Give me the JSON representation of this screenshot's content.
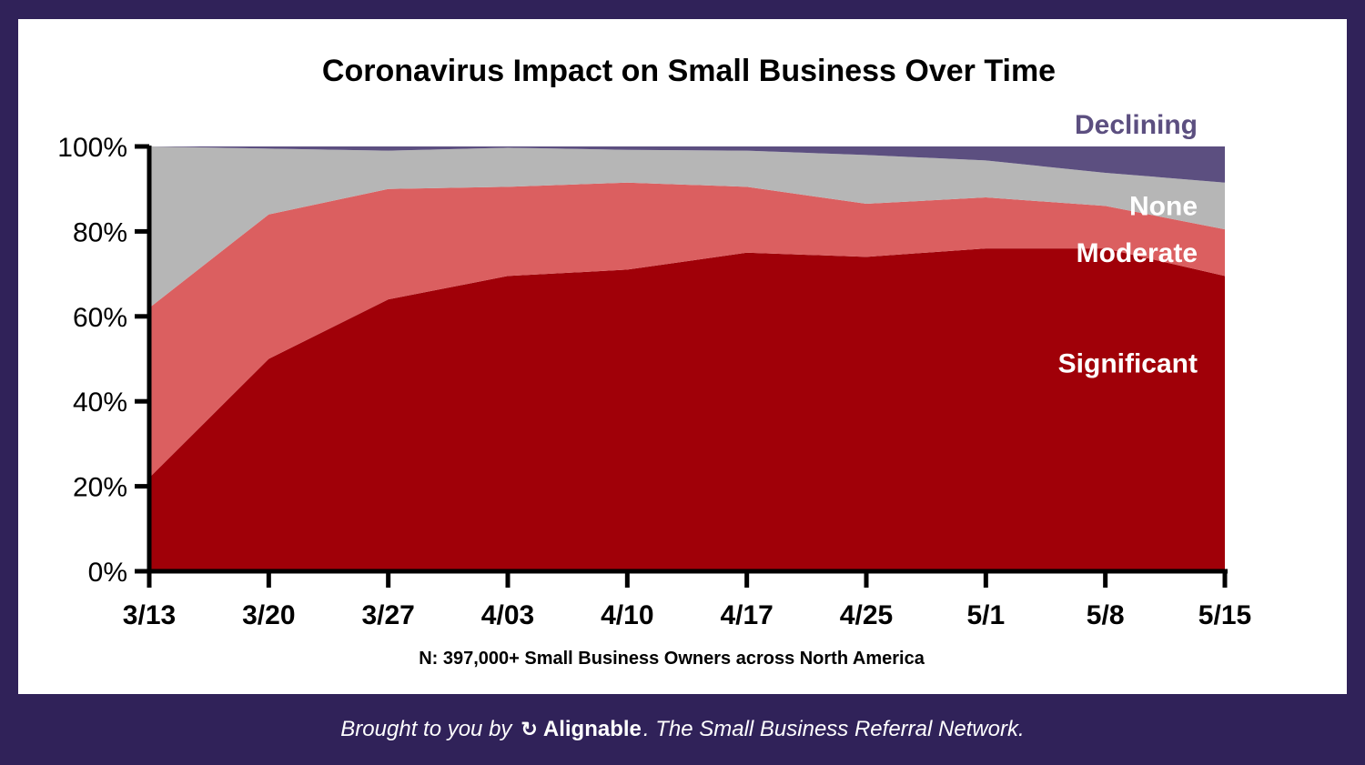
{
  "chart_data": {
    "type": "area",
    "stacked": true,
    "title": "Coronavirus Impact on Small Business Over Time",
    "note": "N: 397,000+ Small Business Owners across North America",
    "categories": [
      "3/13",
      "3/20",
      "3/27",
      "4/03",
      "4/10",
      "4/17",
      "4/25",
      "5/1",
      "5/8",
      "5/15"
    ],
    "ylim": [
      0,
      100
    ],
    "y_ticks": [
      "0%",
      "20%",
      "40%",
      "60%",
      "80%",
      "100%"
    ],
    "grid": false,
    "series": [
      {
        "name": "Significant",
        "color": "#a00008",
        "values": [
          22,
          50,
          64,
          69.5,
          71,
          75,
          74,
          76,
          76,
          69.5
        ]
      },
      {
        "name": "Moderate",
        "color": "#db5f60",
        "values": [
          40,
          34,
          26,
          21,
          20.5,
          15.5,
          12.5,
          12,
          10,
          11
        ]
      },
      {
        "name": "None",
        "color": "#b6b6b6",
        "values": [
          38,
          15.5,
          9,
          9.2,
          7.7,
          8.5,
          11.5,
          8.7,
          7.8,
          11
        ]
      },
      {
        "name": "Declining",
        "color": "#5c4f80",
        "values": [
          0,
          0.5,
          1,
          0.3,
          0.8,
          1,
          2,
          3.3,
          6.2,
          8.5
        ]
      }
    ],
    "series_label_colors": {
      "Significant": "#ffffff",
      "Moderate": "#ffffff",
      "None": "#ffffff",
      "Declining": "#5c4f80"
    }
  },
  "footer": {
    "prefix": "Brought to you by",
    "brand_icon": "alignable-logo-icon",
    "brand": "Alignable",
    "suffix": ". The Small Business Referral Network."
  }
}
